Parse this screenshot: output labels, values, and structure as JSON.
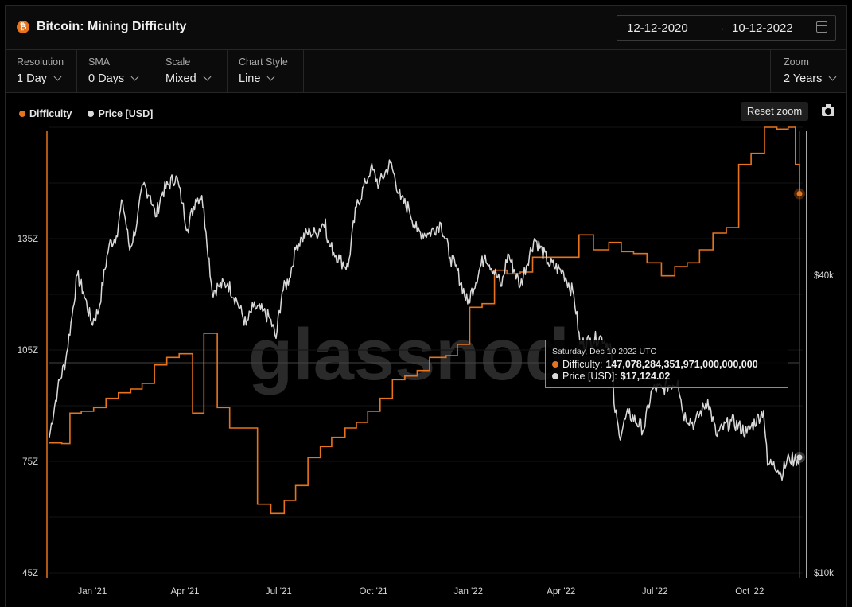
{
  "header": {
    "title": "Bitcoin: Mining Difficulty",
    "date_from": "12-12-2020",
    "date_arrow": "→",
    "date_to": "10-12-2022"
  },
  "controls": {
    "resolution": {
      "label": "Resolution",
      "value": "1 Day"
    },
    "sma": {
      "label": "SMA",
      "value": "0 Days"
    },
    "scale": {
      "label": "Scale",
      "value": "Mixed"
    },
    "style": {
      "label": "Chart Style",
      "value": "Line"
    },
    "zoom": {
      "label": "Zoom",
      "value": "2 Years"
    }
  },
  "legend": {
    "difficulty": "Difficulty",
    "price": "Price [USD]"
  },
  "reset_zoom": "Reset zoom",
  "watermark": "glassnode",
  "tooltip": {
    "date": "Saturday, Dec 10 2022 UTC",
    "difficulty_label": "Difficulty:",
    "difficulty_value": "147,078,284,351,971,000,000,000",
    "price_label": "Price [USD]:",
    "price_value": "$17,124.02"
  },
  "colors": {
    "difficulty": "#e8731d",
    "price": "#d9d9d9"
  },
  "chart_data": {
    "type": "line",
    "y_left_ticks": [
      "45Z",
      "75Z",
      "105Z",
      "135Z"
    ],
    "y_right_ticks": [
      "$10k",
      "$40k"
    ],
    "x_ticks": [
      "Jan '21",
      "Apr '21",
      "Jul '21",
      "Oct '21",
      "Jan '22",
      "Apr '22",
      "Jul '22",
      "Oct '22"
    ],
    "series": [
      {
        "name": "Difficulty",
        "axis": "left",
        "points": [
          [
            "2020-12-12",
            80.0
          ],
          [
            "2020-12-24",
            79.8
          ],
          [
            "2021-01-01",
            88.0
          ],
          [
            "2021-01-12",
            88.5
          ],
          [
            "2021-01-24",
            89.5
          ],
          [
            "2021-02-05",
            92.0
          ],
          [
            "2021-02-17",
            93.5
          ],
          [
            "2021-03-01",
            94.5
          ],
          [
            "2021-03-12",
            96.0
          ],
          [
            "2021-03-24",
            101.0
          ],
          [
            "2021-04-05",
            103.0
          ],
          [
            "2021-04-17",
            104.0
          ],
          [
            "2021-04-30",
            88.0
          ],
          [
            "2021-05-11",
            109.5
          ],
          [
            "2021-05-24",
            89.5
          ],
          [
            "2021-06-05",
            84.0
          ],
          [
            "2021-07-02",
            63.5
          ],
          [
            "2021-07-15",
            61.0
          ],
          [
            "2021-07-28",
            64.5
          ],
          [
            "2021-08-08",
            68.5
          ],
          [
            "2021-08-20",
            76.0
          ],
          [
            "2021-09-01",
            79.0
          ],
          [
            "2021-09-12",
            81.5
          ],
          [
            "2021-09-25",
            84.0
          ],
          [
            "2021-10-06",
            85.5
          ],
          [
            "2021-10-17",
            88.5
          ],
          [
            "2021-10-29",
            92.0
          ],
          [
            "2021-11-10",
            97.0
          ],
          [
            "2021-11-22",
            98.0
          ],
          [
            "2021-12-04",
            99.5
          ],
          [
            "2021-12-16",
            103.0
          ],
          [
            "2022-01-01",
            103.5
          ],
          [
            "2022-01-12",
            106.5
          ],
          [
            "2022-01-24",
            116.5
          ],
          [
            "2022-02-05",
            117.5
          ],
          [
            "2022-02-17",
            126.5
          ],
          [
            "2022-03-01",
            125.5
          ],
          [
            "2022-03-14",
            126.0
          ],
          [
            "2022-03-26",
            130.0
          ],
          [
            "2022-04-11",
            130.0
          ],
          [
            "2022-04-23",
            130.0
          ],
          [
            "2022-05-10",
            136.0
          ],
          [
            "2022-05-24",
            132.0
          ],
          [
            "2022-06-08",
            134.0
          ],
          [
            "2022-06-20",
            131.5
          ],
          [
            "2022-07-02",
            131.0
          ],
          [
            "2022-07-15",
            128.5
          ],
          [
            "2022-07-29",
            125.0
          ],
          [
            "2022-08-11",
            127.5
          ],
          [
            "2022-08-23",
            128.5
          ],
          [
            "2022-09-04",
            132.0
          ],
          [
            "2022-09-17",
            136.5
          ],
          [
            "2022-09-30",
            138.0
          ],
          [
            "2022-10-12",
            155.0
          ],
          [
            "2022-10-24",
            158.0
          ],
          [
            "2022-11-06",
            165.0
          ],
          [
            "2022-11-18",
            164.5
          ],
          [
            "2022-11-29",
            165.0
          ],
          [
            "2022-12-06",
            155.0
          ],
          [
            "2022-12-10",
            147.1
          ]
        ]
      },
      {
        "name": "Price [USD]",
        "axis": "right",
        "points": [
          [
            "2020-12-12",
            18800
          ],
          [
            "2020-12-20",
            23500
          ],
          [
            "2020-12-28",
            27000
          ],
          [
            "2021-01-03",
            33000
          ],
          [
            "2021-01-08",
            40000
          ],
          [
            "2021-01-14",
            37000
          ],
          [
            "2021-01-22",
            32000
          ],
          [
            "2021-01-29",
            34000
          ],
          [
            "2021-02-08",
            46000
          ],
          [
            "2021-02-15",
            48000
          ],
          [
            "2021-02-21",
            56500
          ],
          [
            "2021-02-28",
            45000
          ],
          [
            "2021-03-07",
            51000
          ],
          [
            "2021-03-13",
            61000
          ],
          [
            "2021-03-20",
            58000
          ],
          [
            "2021-03-25",
            52500
          ],
          [
            "2021-04-01",
            59000
          ],
          [
            "2021-04-14",
            63500
          ],
          [
            "2021-04-20",
            56000
          ],
          [
            "2021-04-25",
            49500
          ],
          [
            "2021-05-03",
            57000
          ],
          [
            "2021-05-09",
            58000
          ],
          [
            "2021-05-13",
            49000
          ],
          [
            "2021-05-19",
            37000
          ],
          [
            "2021-05-25",
            38000
          ],
          [
            "2021-06-03",
            38500
          ],
          [
            "2021-06-12",
            35500
          ],
          [
            "2021-06-21",
            31700
          ],
          [
            "2021-06-28",
            34500
          ],
          [
            "2021-07-07",
            33800
          ],
          [
            "2021-07-14",
            32700
          ],
          [
            "2021-07-20",
            29800
          ],
          [
            "2021-07-26",
            37000
          ],
          [
            "2021-08-02",
            39500
          ],
          [
            "2021-08-09",
            46000
          ],
          [
            "2021-08-14",
            47500
          ],
          [
            "2021-08-22",
            49000
          ],
          [
            "2021-08-28",
            48500
          ],
          [
            "2021-09-06",
            52000
          ],
          [
            "2021-09-08",
            46500
          ],
          [
            "2021-09-20",
            43000
          ],
          [
            "2021-09-28",
            41500
          ],
          [
            "2021-10-06",
            55000
          ],
          [
            "2021-10-15",
            61500
          ],
          [
            "2021-10-20",
            66000
          ],
          [
            "2021-10-28",
            61000
          ],
          [
            "2021-11-08",
            67500
          ],
          [
            "2021-11-18",
            57000
          ],
          [
            "2021-11-26",
            54500
          ],
          [
            "2021-12-04",
            49000
          ],
          [
            "2021-12-15",
            48500
          ],
          [
            "2021-12-27",
            51000
          ],
          [
            "2022-01-05",
            43500
          ],
          [
            "2022-01-10",
            41800
          ],
          [
            "2022-01-22",
            35000
          ],
          [
            "2022-02-08",
            44000
          ],
          [
            "2022-02-24",
            38000
          ],
          [
            "2022-03-02",
            44200
          ],
          [
            "2022-03-14",
            38000
          ],
          [
            "2022-03-28",
            47500
          ],
          [
            "2022-04-10",
            42500
          ],
          [
            "2022-04-25",
            40500
          ],
          [
            "2022-05-05",
            36500
          ],
          [
            "2022-05-11",
            29000
          ],
          [
            "2022-05-20",
            29500
          ],
          [
            "2022-06-01",
            30000
          ],
          [
            "2022-06-10",
            28500
          ],
          [
            "2022-06-13",
            22000
          ],
          [
            "2022-06-18",
            19000
          ],
          [
            "2022-06-27",
            21000
          ],
          [
            "2022-07-12",
            19500
          ],
          [
            "2022-07-20",
            23500
          ],
          [
            "2022-07-30",
            23600
          ],
          [
            "2022-08-14",
            24500
          ],
          [
            "2022-08-19",
            21000
          ],
          [
            "2022-08-30",
            20000
          ],
          [
            "2022-09-12",
            22400
          ],
          [
            "2022-09-20",
            19000
          ],
          [
            "2022-10-05",
            20300
          ],
          [
            "2022-10-20",
            19200
          ],
          [
            "2022-11-05",
            21300
          ],
          [
            "2022-11-09",
            16500
          ],
          [
            "2022-11-15",
            16800
          ],
          [
            "2022-11-22",
            15800
          ],
          [
            "2022-11-30",
            17100
          ],
          [
            "2022-12-05",
            16900
          ],
          [
            "2022-12-10",
            17124
          ]
        ]
      }
    ]
  }
}
